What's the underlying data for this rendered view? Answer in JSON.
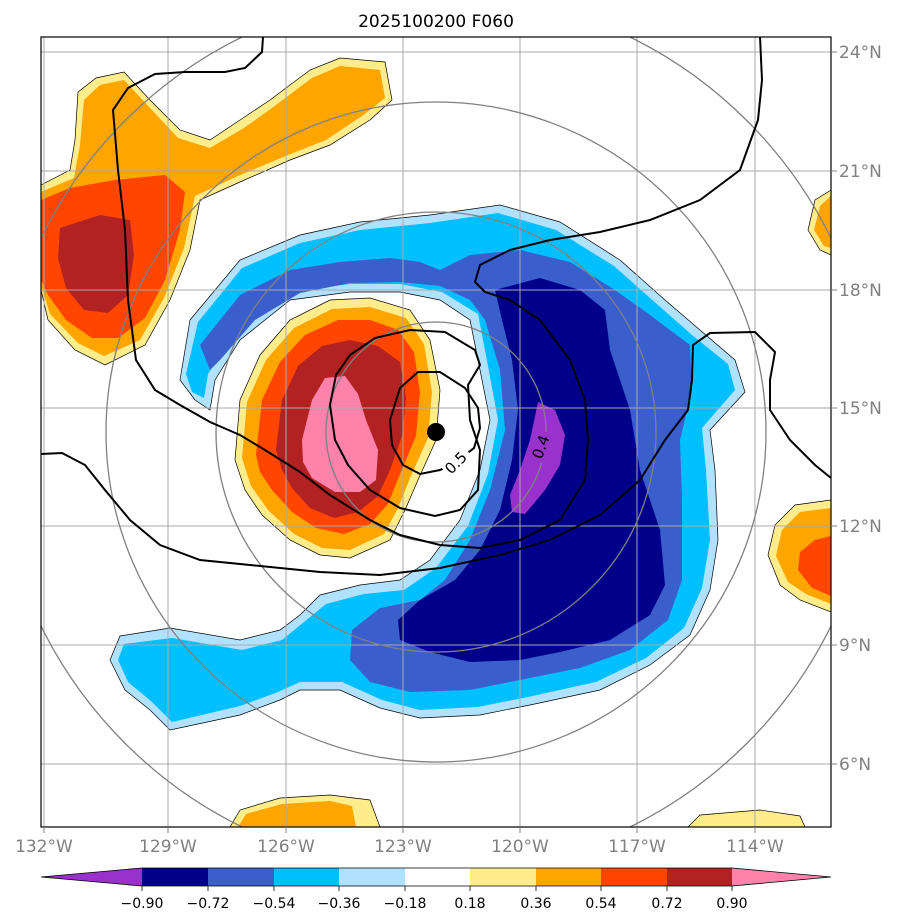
{
  "title": "2025100200 F060",
  "lon_ticks": [
    "132°W",
    "129°W",
    "126°W",
    "123°W",
    "120°W",
    "117°W",
    "114°W"
  ],
  "lat_ticks": [
    "24°N",
    "21°N",
    "18°N",
    "15°N",
    "12°N",
    "9°N",
    "6°N"
  ],
  "contour_labels": [
    "0.5",
    "0.4"
  ],
  "colorbar": {
    "levels": [
      "−0.90",
      "−0.72",
      "−0.54",
      "−0.36",
      "−0.18",
      "0.18",
      "0.36",
      "0.54",
      "0.72",
      "0.90"
    ],
    "colors": [
      "#9932cc",
      "#00008b",
      "#3a5fcd",
      "#00bfff",
      "#b0e2ff",
      "#ffffff",
      "#ffec8b",
      "#ffa500",
      "#ff4500",
      "#b22222",
      "#ff82ab"
    ]
  },
  "storm_center": {
    "lon": "122.2°W",
    "lat": "14.4°N"
  },
  "colors": {
    "purple": "#9932cc",
    "navy": "#00008b",
    "royal": "#3a5fcd",
    "sky": "#00bfff",
    "lightsky": "#b0e2ff",
    "white": "#ffffff",
    "lightyellow": "#ffec8b",
    "orange": "#ffa500",
    "orangered": "#ff4500",
    "firebrick": "#b22222",
    "pink": "#ff82ab"
  }
}
